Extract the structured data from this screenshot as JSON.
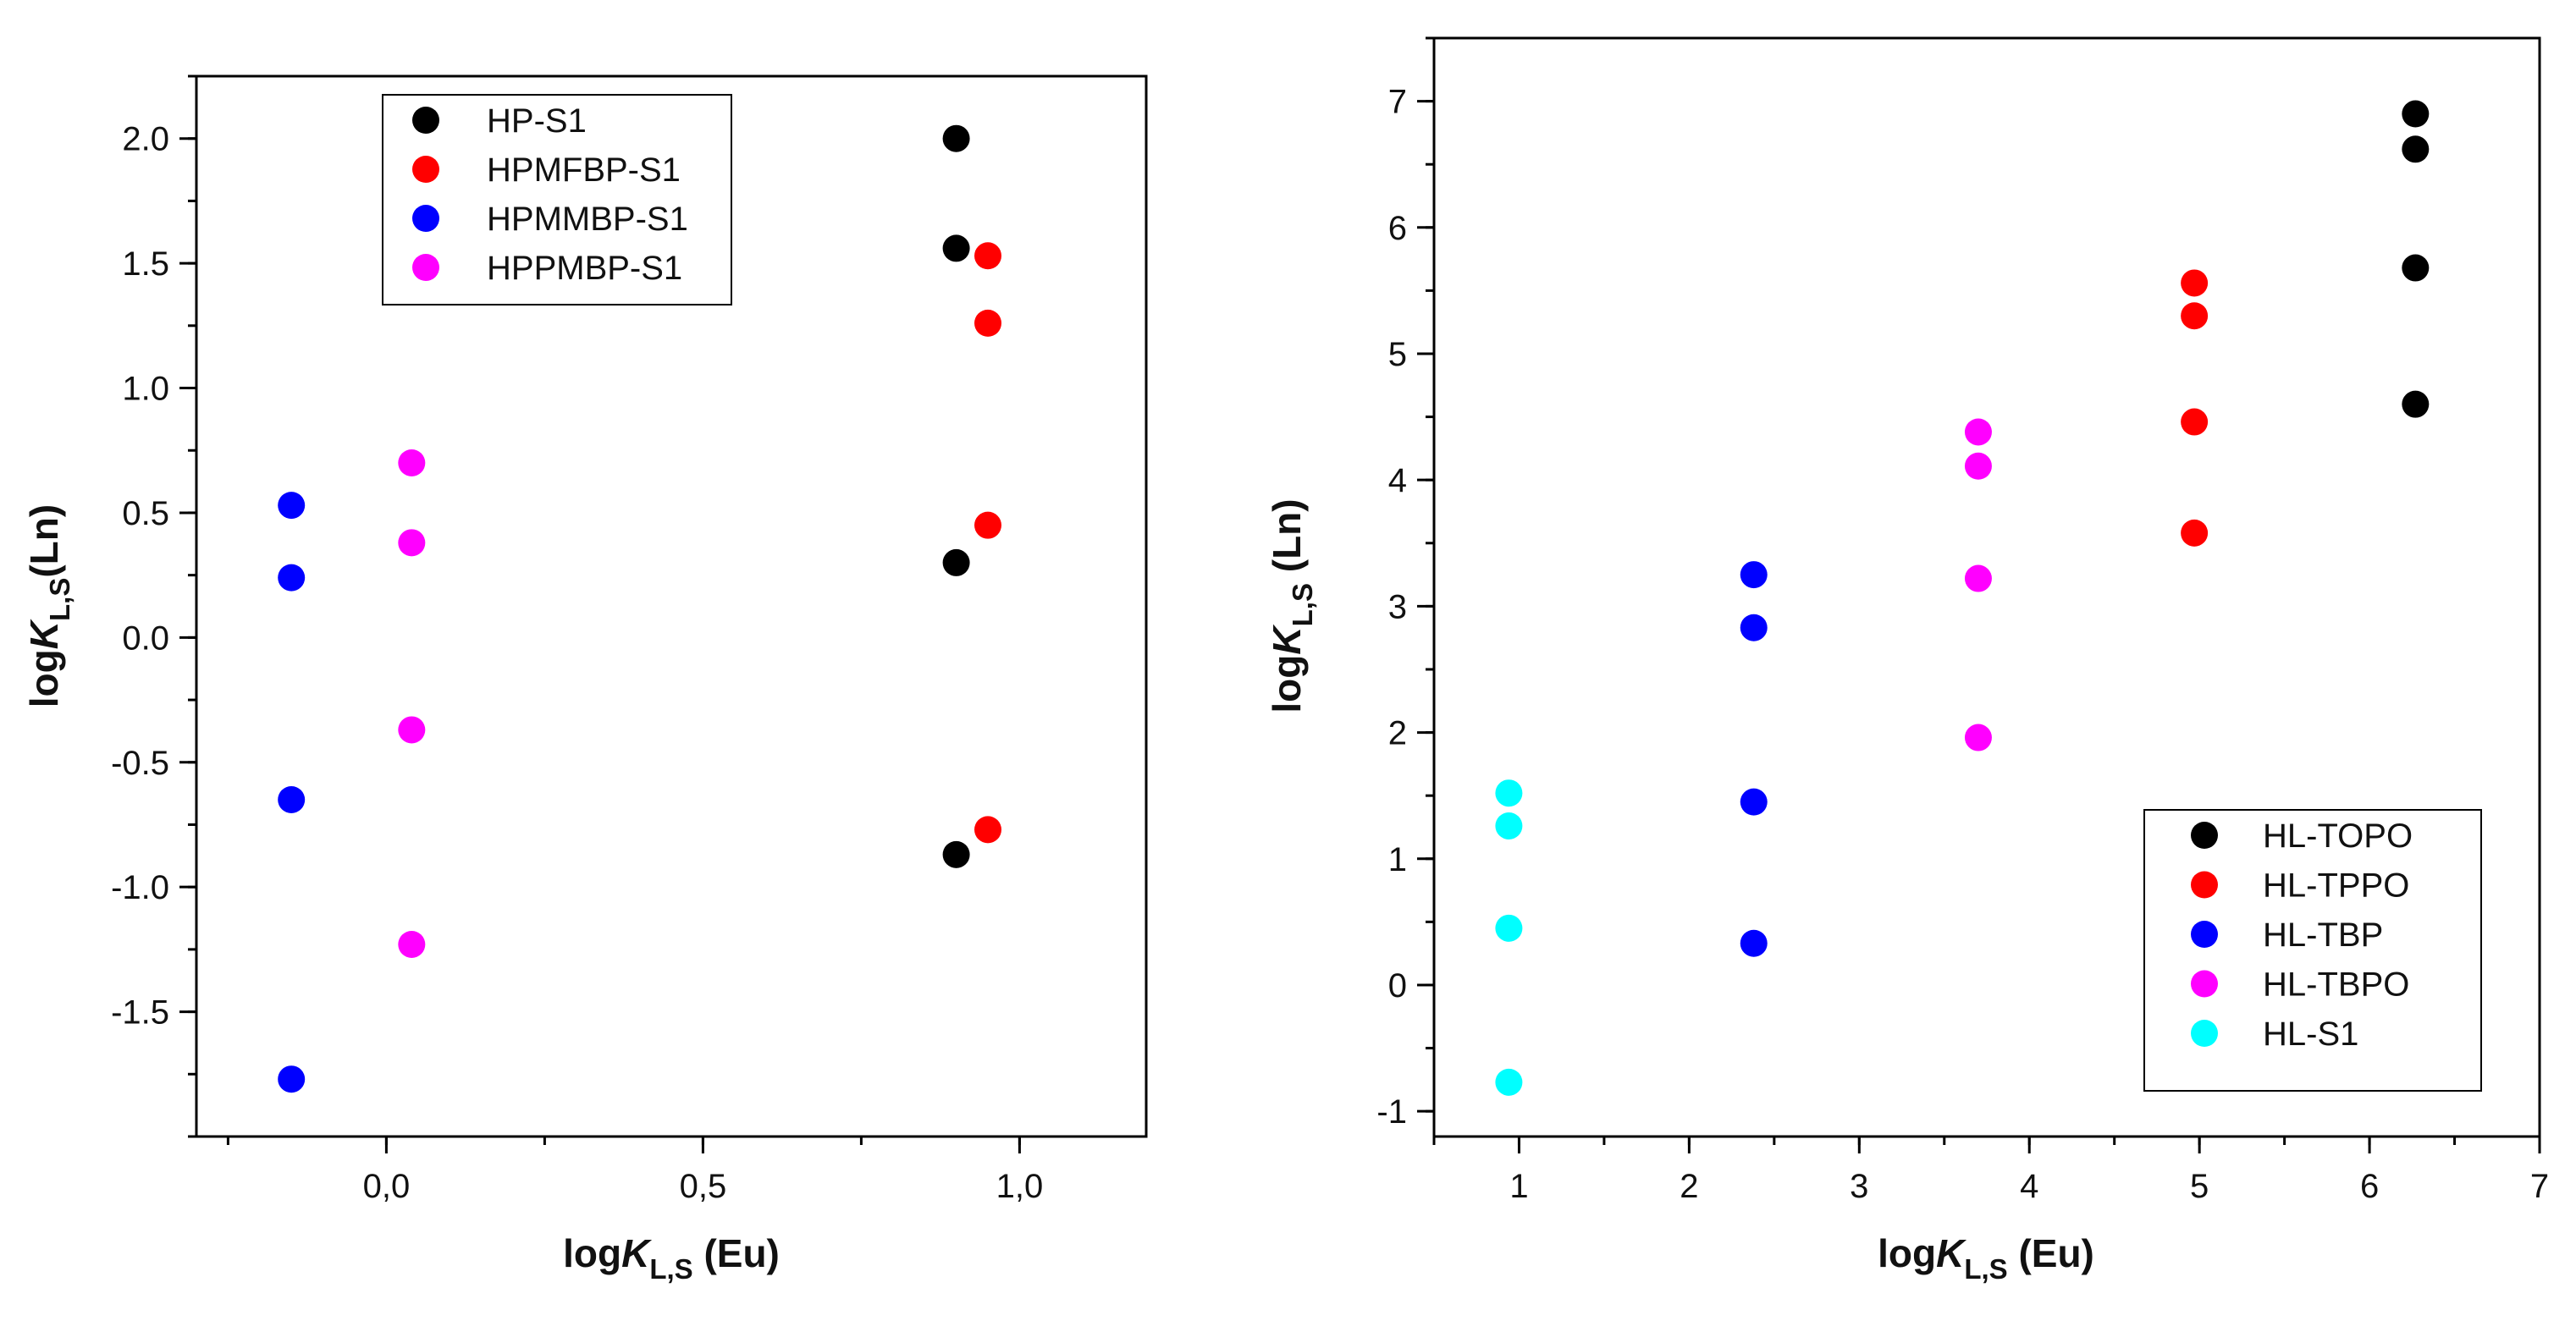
{
  "chart_data": [
    {
      "type": "scatter",
      "title": "",
      "xlabel": {
        "base": "log",
        "italic": "K",
        "sub": "L,S",
        "suffix": " (Eu)"
      },
      "ylabel": {
        "base": "log",
        "italic": "K",
        "sub": "L,S",
        "suffix": "(Ln)"
      },
      "xlim": [
        -0.3,
        1.2
      ],
      "ylim": [
        -2.0,
        2.25
      ],
      "xticks": [
        0.0,
        0.5,
        1.0
      ],
      "xtick_labels": [
        "0,0",
        "0,5",
        "1,0"
      ],
      "yticks": [
        -1.5,
        -1.0,
        -0.5,
        0.0,
        0.5,
        1.0,
        1.5,
        2.0
      ],
      "ytick_labels": [
        "-1.5",
        "-1.0",
        "-0.5",
        "0.0",
        "0.5",
        "1.0",
        "1.5",
        "2.0"
      ],
      "legend_position": "top-center",
      "series": [
        {
          "name": "HP-S1",
          "color": "#000000",
          "x": [
            0.9,
            0.9,
            0.9,
            0.9
          ],
          "y": [
            2.0,
            1.56,
            0.3,
            -0.87
          ]
        },
        {
          "name": "HPMFBP-S1",
          "color": "#ff0000",
          "x": [
            0.95,
            0.95,
            0.95,
            0.95
          ],
          "y": [
            1.53,
            1.26,
            0.45,
            -0.77
          ]
        },
        {
          "name": "HPMMBP-S1",
          "color": "#0000ff",
          "x": [
            -0.15,
            -0.15,
            -0.15,
            -0.15
          ],
          "y": [
            0.53,
            0.24,
            -0.65,
            -1.77
          ]
        },
        {
          "name": "HPPMBP-S1",
          "color": "#ff00ff",
          "x": [
            0.04,
            0.04,
            0.04,
            0.04
          ],
          "y": [
            0.7,
            0.38,
            -0.37,
            -1.23
          ]
        }
      ]
    },
    {
      "type": "scatter",
      "title": "",
      "xlabel": {
        "base": "log",
        "italic": "K",
        "sub": "L,S",
        "suffix": " (Eu)"
      },
      "ylabel": {
        "base": "log",
        "italic": "K",
        "sub": "L,S",
        "suffix": " (Ln)"
      },
      "xlim": [
        0.5,
        7.0
      ],
      "ylim": [
        -1.2,
        7.5
      ],
      "xticks": [
        1,
        2,
        3,
        4,
        5,
        6,
        7
      ],
      "xtick_labels": [
        "1",
        "2",
        "3",
        "4",
        "5",
        "6",
        "7"
      ],
      "yticks": [
        -1,
        0,
        1,
        2,
        3,
        4,
        5,
        6,
        7
      ],
      "ytick_labels": [
        "-1",
        "0",
        "1",
        "2",
        "3",
        "4",
        "5",
        "6",
        "7"
      ],
      "legend_position": "bottom-right",
      "series": [
        {
          "name": "HL-TOPO",
          "color": "#000000",
          "x": [
            6.27,
            6.27,
            6.27,
            6.27
          ],
          "y": [
            6.9,
            6.62,
            5.68,
            4.6
          ]
        },
        {
          "name": "HL-TPPO",
          "color": "#ff0000",
          "x": [
            4.97,
            4.97,
            4.97,
            4.97
          ],
          "y": [
            5.56,
            5.3,
            4.46,
            3.58
          ]
        },
        {
          "name": "HL-TBP",
          "color": "#0000ff",
          "x": [
            2.38,
            2.38,
            2.38,
            2.38
          ],
          "y": [
            3.25,
            2.83,
            1.45,
            0.33
          ]
        },
        {
          "name": "HL-TBPO",
          "color": "#ff00ff",
          "x": [
            3.7,
            3.7,
            3.7,
            3.7
          ],
          "y": [
            4.38,
            4.11,
            3.22,
            1.96
          ]
        },
        {
          "name": "HL-S1",
          "color": "#00ffff",
          "x": [
            0.94,
            0.94,
            0.94,
            0.94
          ],
          "y": [
            1.52,
            1.26,
            0.45,
            -0.77
          ]
        }
      ]
    }
  ]
}
